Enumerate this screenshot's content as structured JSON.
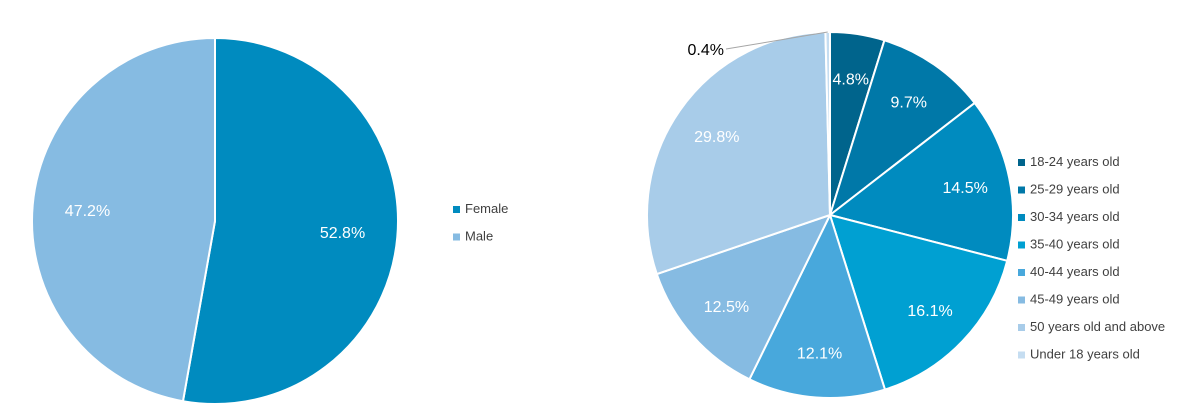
{
  "chart_data": [
    {
      "type": "pie",
      "categories": [
        "Female",
        "Male"
      ],
      "values": [
        52.8,
        47.2
      ],
      "labels": [
        "52.8%",
        "47.2%"
      ],
      "colors": [
        "#008bbf",
        "#86bbe2"
      ],
      "legend": {
        "position": "right",
        "entries": [
          "Female",
          "Male"
        ]
      },
      "title": "",
      "xlabel": "",
      "ylabel": ""
    },
    {
      "type": "pie",
      "categories": [
        "18-24 years old",
        "25-29 years old",
        "30-34 years old",
        "35-40 years old",
        "40-44 years old",
        "45-49 years old",
        "50 years old and above",
        "Under 18 years old"
      ],
      "values": [
        4.8,
        9.7,
        14.5,
        16.1,
        12.1,
        12.5,
        29.8,
        0.4
      ],
      "labels": [
        "4.8%",
        "9.7%",
        "14.5%",
        "16.1%",
        "12.1%",
        "12.5%",
        "29.8%",
        "0.4%"
      ],
      "colors": [
        "#00648c",
        "#0078a8",
        "#008bbf",
        "#00a0d2",
        "#48a8dc",
        "#86bbe2",
        "#a8cce9",
        "#c5ddf1"
      ],
      "legend": {
        "position": "right",
        "entries": [
          "18-24 years old",
          "25-29 years old",
          "30-34 years old",
          "35-40 years old",
          "40-44 years old",
          "45-49 years old",
          "50 years old and above",
          "Under 18 years old"
        ]
      },
      "title": "",
      "xlabel": "",
      "ylabel": ""
    }
  ]
}
